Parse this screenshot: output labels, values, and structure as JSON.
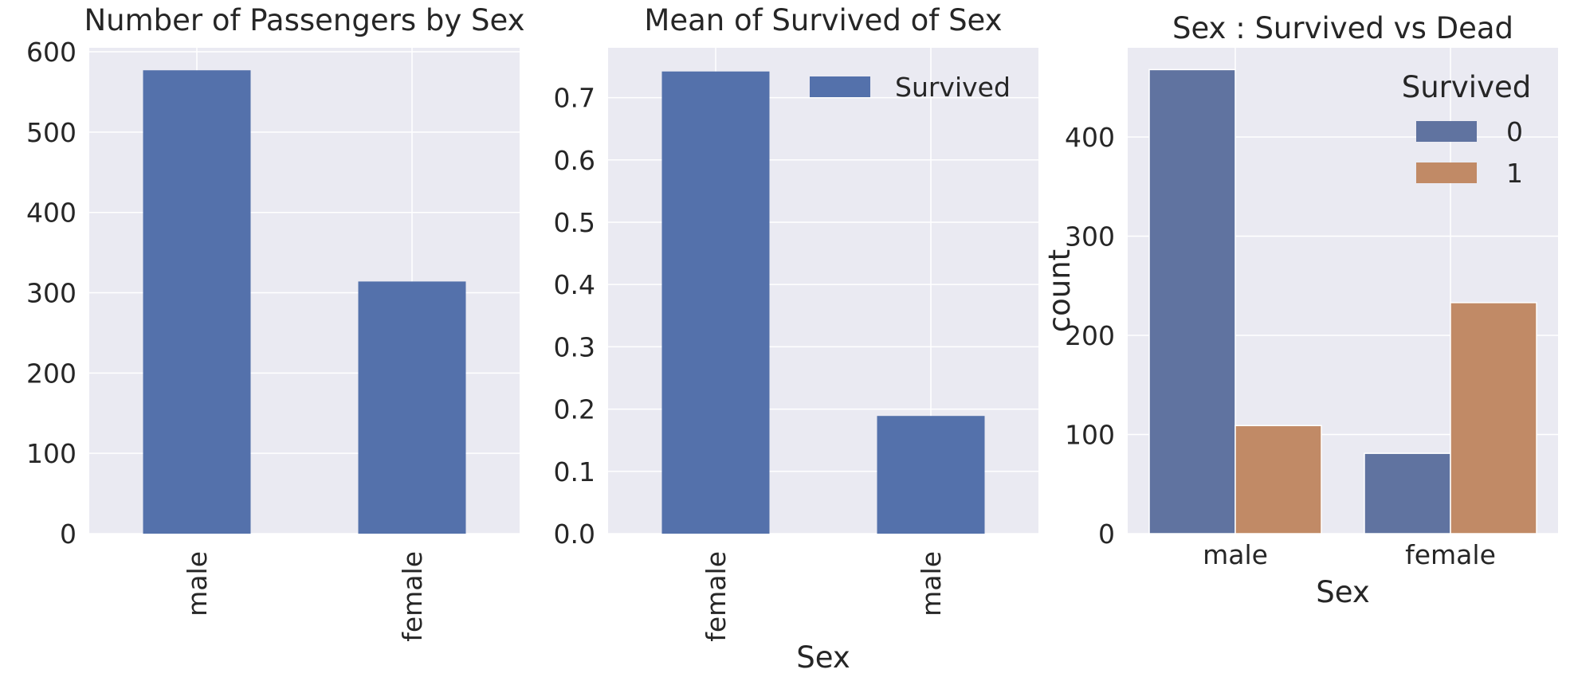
{
  "colors": {
    "background": "#eaeaf2",
    "grid": "#ffffff",
    "text": "#262626",
    "bar_blue": "#5471ab",
    "survived_0": "#6073a0",
    "survived_1": "#c18a66"
  },
  "chart_data": [
    {
      "type": "bar",
      "title": "Number of Passengers by Sex",
      "xlabel": "",
      "ylabel": "",
      "categories": [
        "male",
        "female"
      ],
      "values": [
        577,
        314
      ],
      "ylim": [
        0,
        605
      ],
      "yticks": [
        0,
        100,
        200,
        300,
        400,
        500,
        600
      ],
      "tick_labels": [
        "0",
        "100",
        "200",
        "300",
        "400",
        "500",
        "600"
      ],
      "x_tick_rotation": "vertical",
      "grid": true,
      "legend": null
    },
    {
      "type": "bar",
      "title": "Mean of Survived of Sex",
      "xlabel": "Sex",
      "ylabel": "",
      "categories": [
        "female",
        "male"
      ],
      "series": [
        {
          "name": "Survived",
          "values": [
            0.742,
            0.189
          ]
        }
      ],
      "ylim": [
        0,
        0.78
      ],
      "yticks": [
        0.0,
        0.1,
        0.2,
        0.3,
        0.4,
        0.5,
        0.6,
        0.7
      ],
      "tick_labels": [
        "0.0",
        "0.1",
        "0.2",
        "0.3",
        "0.4",
        "0.5",
        "0.6",
        "0.7"
      ],
      "x_tick_rotation": "vertical",
      "grid": true,
      "legend": {
        "position": "top-right",
        "entries": [
          "Survived"
        ]
      }
    },
    {
      "type": "bar",
      "title": "Sex : Survived vs Dead",
      "xlabel": "Sex",
      "ylabel": "count",
      "categories": [
        "male",
        "female"
      ],
      "series": [
        {
          "name": "0",
          "values": [
            468,
            81
          ]
        },
        {
          "name": "1",
          "values": [
            109,
            233
          ]
        }
      ],
      "ylim": [
        0,
        490
      ],
      "yticks": [
        0,
        100,
        200,
        300,
        400
      ],
      "tick_labels": [
        "0",
        "100",
        "200",
        "300",
        "400"
      ],
      "x_tick_rotation": "horizontal",
      "grid": true,
      "legend": {
        "position": "top-right",
        "title": "Survived",
        "entries": [
          "0",
          "1"
        ]
      }
    }
  ]
}
